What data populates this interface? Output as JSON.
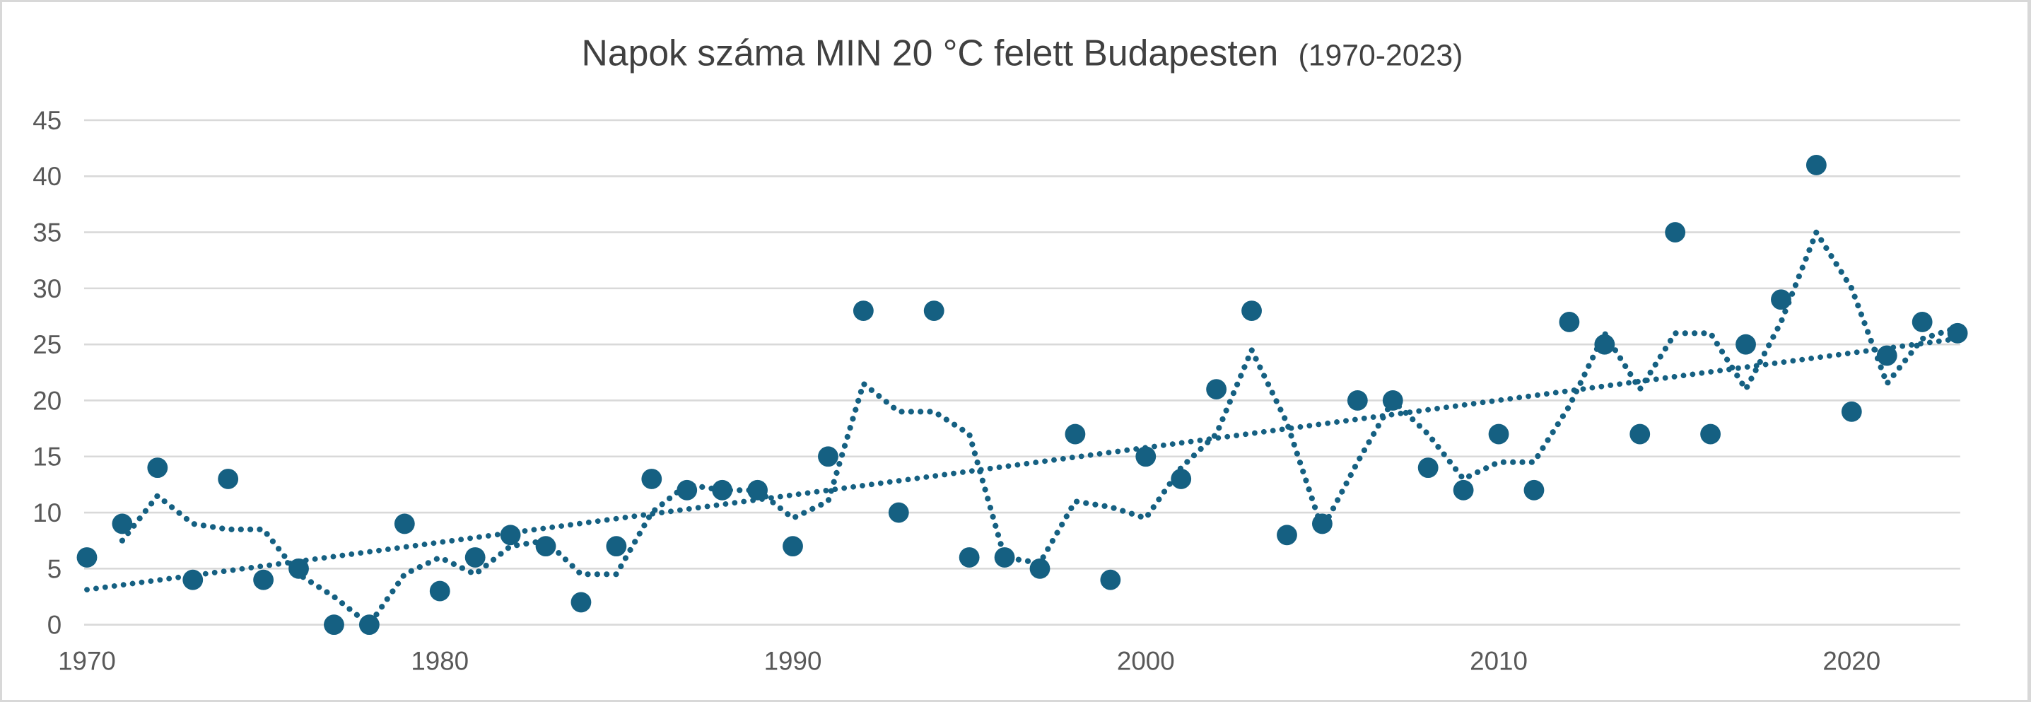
{
  "frame": {
    "background": "#ffffff",
    "border_color": "#d8d8d8"
  },
  "chart_data": {
    "type": "scatter",
    "title": "Napok száma MIN 20 °C felett Budapesten",
    "title_suffix": "(1970-2023)",
    "xlabel": "",
    "ylabel": "",
    "x_range": [
      1970,
      2023
    ],
    "values": [
      6,
      9,
      14,
      4,
      13,
      4,
      5,
      0,
      0,
      9,
      3,
      6,
      8,
      7,
      2,
      7,
      13,
      12,
      12,
      12,
      7,
      15,
      28,
      10,
      28,
      6,
      6,
      5,
      17,
      4,
      15,
      13,
      21,
      28,
      8,
      9,
      20,
      20,
      14,
      12,
      17,
      12,
      27,
      25,
      17,
      35,
      17,
      25,
      29,
      41,
      19,
      24,
      27,
      26
    ],
    "xticks": [
      1970,
      1980,
      1990,
      2000,
      2010,
      2020
    ],
    "yticks": [
      0,
      5,
      10,
      15,
      20,
      25,
      30,
      35,
      40,
      45
    ],
    "ylim": [
      0,
      45
    ],
    "grid": "horizontal",
    "legend": "none",
    "overlays": [
      {
        "name": "moving-average",
        "style": "dotted",
        "method": "trailing mean",
        "window": 2
      },
      {
        "name": "linear-trend",
        "style": "dotted",
        "method": "least squares"
      }
    ],
    "colors": {
      "marker": "#156082",
      "line": "#156082",
      "grid": "#d9d9d9",
      "axis_text": "#595959",
      "title_text": "#404040",
      "background": "#ffffff"
    }
  }
}
